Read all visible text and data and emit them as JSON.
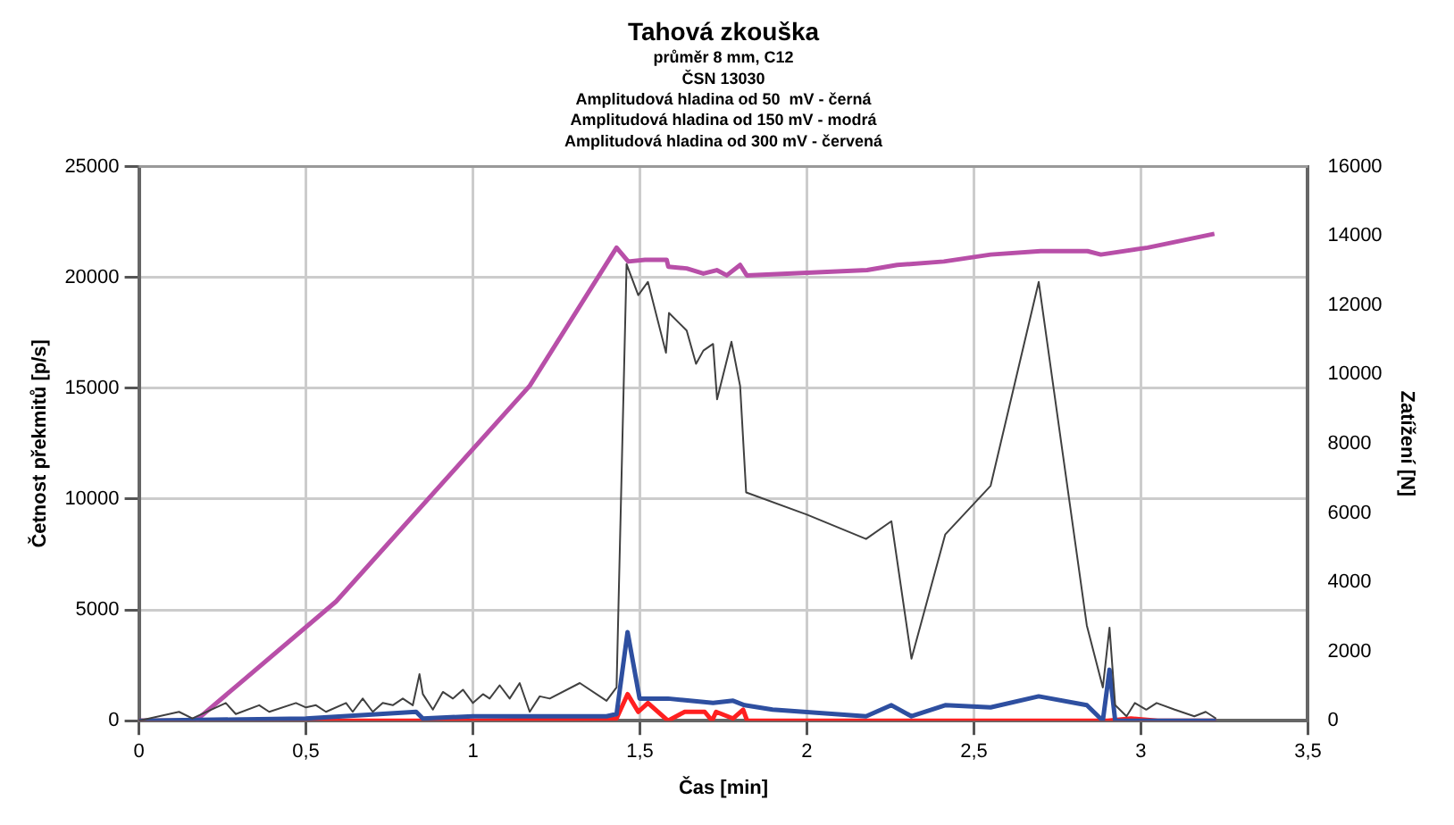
{
  "chart_data": {
    "type": "line",
    "title": "Tahová zkouška",
    "subtitle": "průměr 8 mm, C12",
    "annotations": [
      "ČSN 13030",
      "Amplitudová hladina od 50  mV - černá",
      "Amplitudová hladina od 150 mV - modrá",
      "Amplitudová hladina od 300 mV - červená"
    ],
    "xlabel": "Čas [min]",
    "ylabel": "Četnost překmitů [p/s]",
    "y2label": "Zatížení [N]",
    "xlim": [
      0,
      3.5
    ],
    "xticks": [
      0,
      {
        "value": 0.5,
        "label": "0,5"
      },
      1,
      {
        "value": 1.5,
        "label": "1,5"
      },
      2,
      {
        "value": 2.5,
        "label": "2,5"
      },
      3,
      {
        "value": 3.5,
        "label": "3,5"
      }
    ],
    "ylim": [
      0,
      25000
    ],
    "yticks": [
      0,
      5000,
      10000,
      15000,
      20000,
      25000
    ],
    "y2lim": [
      0,
      16000
    ],
    "y2ticks": [
      0,
      2000,
      4000,
      6000,
      8000,
      10000,
      12000,
      14000,
      16000
    ],
    "grid": true,
    "legend": false,
    "marker": "none",
    "line_style": "solid",
    "series": [
      {
        "color": "#404040",
        "x": [
          0,
          0.12,
          0.16,
          0.26,
          0.29,
          0.36,
          0.39,
          0.47,
          0.5,
          0.53,
          0.56,
          0.62,
          0.64,
          0.67,
          0.7,
          0.73,
          0.76,
          0.79,
          0.82,
          0.84,
          0.85,
          0.88,
          0.91,
          0.94,
          0.97,
          1.0,
          1.03,
          1.05,
          1.08,
          1.11,
          1.14,
          1.17,
          1.2,
          1.23,
          1.32,
          1.4,
          1.43,
          1.46,
          1.495,
          1.524,
          1.578,
          1.587,
          1.64,
          1.668,
          1.69,
          1.719,
          1.731,
          1.774,
          1.8,
          1.818,
          2.0,
          2.177,
          2.253,
          2.313,
          2.414,
          2.55,
          2.694,
          2.838,
          2.886,
          2.906,
          2.923,
          2.957,
          2.982,
          3.016,
          3.047,
          3.101,
          3.16,
          3.194,
          3.225
        ],
        "values": [
          0,
          400,
          100,
          800,
          300,
          700,
          400,
          800,
          600,
          700,
          400,
          800,
          400,
          1000,
          400,
          800,
          700,
          1000,
          700,
          2100,
          1200,
          500,
          1300,
          1000,
          1400,
          800,
          1200,
          1000,
          1600,
          1000,
          1700,
          400,
          1100,
          1000,
          1700,
          900,
          1500,
          20600,
          19200,
          19800,
          16600,
          18400,
          17600,
          16100,
          16700,
          17000,
          14500,
          17100,
          15100,
          10300,
          9300,
          8200,
          9000,
          2800,
          8400,
          10600,
          19800,
          4300,
          1500,
          4200,
          700,
          200,
          800,
          500,
          800,
          500,
          200,
          400,
          100
        ]
      },
      {
        "color": "#2e4fa0",
        "x": [
          0,
          0.5,
          0.83,
          0.85,
          1.0,
          1.2,
          1.4,
          1.43,
          1.463,
          1.499,
          1.584,
          1.719,
          1.779,
          1.813,
          1.897,
          2.177,
          2.253,
          2.313,
          2.414,
          2.55,
          2.694,
          2.838,
          2.886,
          2.906,
          2.923,
          3.225
        ],
        "values": [
          0,
          100,
          400,
          100,
          200,
          200,
          200,
          300,
          4000,
          1000,
          1000,
          800,
          900,
          700,
          500,
          200,
          700,
          200,
          700,
          600,
          1100,
          700,
          0,
          2300,
          0,
          0
        ]
      },
      {
        "color": "#ff2020",
        "x": [
          0,
          1.0,
          1.43,
          1.463,
          1.495,
          1.524,
          1.584,
          1.634,
          1.694,
          1.716,
          1.728,
          1.779,
          1.809,
          1.821,
          2.9,
          2.97,
          3.05,
          3.225
        ],
        "values": [
          0,
          0,
          100,
          1200,
          400,
          800,
          0,
          400,
          400,
          0,
          400,
          100,
          500,
          0,
          0,
          100,
          0,
          0
        ]
      },
      {
        "color": "#b84fa8",
        "axis": "y2",
        "x": [
          0.17,
          0.59,
          1.17,
          1.43,
          1.465,
          1.515,
          1.58,
          1.585,
          1.64,
          1.69,
          1.73,
          1.76,
          1.8,
          1.82,
          2.18,
          2.27,
          2.41,
          2.55,
          2.7,
          2.84,
          2.88,
          3.02,
          3.22
        ],
        "values": [
          0,
          3440,
          9670,
          13660,
          13260,
          13310,
          13310,
          13110,
          13060,
          12910,
          13010,
          12860,
          13160,
          12860,
          13010,
          13160,
          13260,
          13460,
          13560,
          13560,
          13460,
          13660,
          14060
        ]
      }
    ]
  }
}
